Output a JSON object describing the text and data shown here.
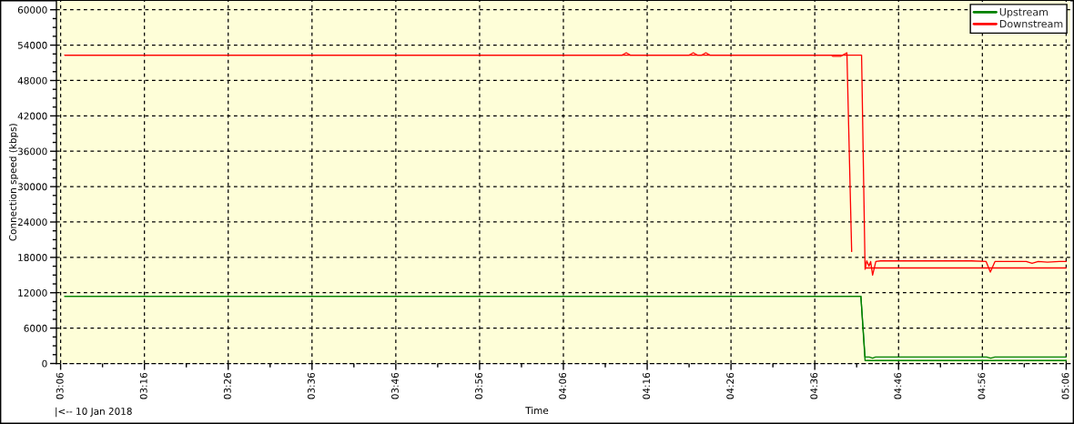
{
  "chart_data": {
    "type": "line",
    "xlabel": "Time",
    "ylabel": "Connection speed (kbps)",
    "annotations": [
      "|<-- 10 Jan 2018"
    ],
    "xlim": [
      "2018-01-10T03:05:30",
      "2018-01-10T05:06:30"
    ],
    "xticks": [
      {
        "value": "2018-01-10T03:06",
        "label": "03:06"
      },
      {
        "value": "2018-01-10T03:11",
        "label": null
      },
      {
        "value": "2018-01-10T03:16",
        "label": "03:16"
      },
      {
        "value": "2018-01-10T03:21",
        "label": null
      },
      {
        "value": "2018-01-10T03:26",
        "label": "03:26"
      },
      {
        "value": "2018-01-10T03:31",
        "label": null
      },
      {
        "value": "2018-01-10T03:36",
        "label": "03:36"
      },
      {
        "value": "2018-01-10T03:41",
        "label": null
      },
      {
        "value": "2018-01-10T03:46",
        "label": "03:46"
      },
      {
        "value": "2018-01-10T03:51",
        "label": null
      },
      {
        "value": "2018-01-10T03:56",
        "label": "03:56"
      },
      {
        "value": "2018-01-10T04:01",
        "label": null
      },
      {
        "value": "2018-01-10T04:06",
        "label": "04:06"
      },
      {
        "value": "2018-01-10T04:11",
        "label": null
      },
      {
        "value": "2018-01-10T04:16",
        "label": "04:16"
      },
      {
        "value": "2018-01-10T04:21",
        "label": null
      },
      {
        "value": "2018-01-10T04:26",
        "label": "04:26"
      },
      {
        "value": "2018-01-10T04:31",
        "label": null
      },
      {
        "value": "2018-01-10T04:36",
        "label": "04:36"
      },
      {
        "value": "2018-01-10T04:41",
        "label": null
      },
      {
        "value": "2018-01-10T04:46",
        "label": "04:46"
      },
      {
        "value": "2018-01-10T04:51",
        "label": null
      },
      {
        "value": "2018-01-10T04:56",
        "label": "04:56"
      },
      {
        "value": "2018-01-10T05:01",
        "label": null
      },
      {
        "value": "2018-01-10T05:06",
        "label": "05:06"
      }
    ],
    "ylim": [
      0,
      61500
    ],
    "yticks": [
      0,
      {
        "value": 1500,
        "label": null
      },
      {
        "value": 3000,
        "label": null
      },
      {
        "value": 4500,
        "label": null
      },
      6000,
      {
        "value": 7500,
        "label": null
      },
      {
        "value": 9000,
        "label": null
      },
      {
        "value": 10500,
        "label": null
      },
      12000,
      {
        "value": 13500,
        "label": null
      },
      {
        "value": 15000,
        "label": null
      },
      {
        "value": 16500,
        "label": null
      },
      18000,
      {
        "value": 19500,
        "label": null
      },
      {
        "value": 21000,
        "label": null
      },
      {
        "value": 22500,
        "label": null
      },
      24000,
      {
        "value": 25500,
        "label": null
      },
      {
        "value": 27000,
        "label": null
      },
      {
        "value": 28500,
        "label": null
      },
      30000,
      {
        "value": 31500,
        "label": null
      },
      {
        "value": 33000,
        "label": null
      },
      {
        "value": 34500,
        "label": null
      },
      36000,
      {
        "value": 37500,
        "label": null
      },
      {
        "value": 39000,
        "label": null
      },
      {
        "value": 40500,
        "label": null
      },
      42000,
      {
        "value": 43500,
        "label": null
      },
      {
        "value": 45000,
        "label": null
      },
      {
        "value": 46500,
        "label": null
      },
      48000,
      {
        "value": 49500,
        "label": null
      },
      {
        "value": 51000,
        "label": null
      },
      {
        "value": 52500,
        "label": null
      },
      54000,
      {
        "value": 55500,
        "label": null
      },
      {
        "value": 57000,
        "label": null
      },
      {
        "value": 58500,
        "label": null
      },
      60000
    ],
    "grid": true,
    "legend": "top right",
    "series": [
      {
        "name": "Upstream",
        "color": "#008000",
        "x": [
          "2018-01-10T03:06:30",
          "2018-01-10T04:41:30",
          "2018-01-10T04:42:00",
          "2018-01-10T05:06:00"
        ],
        "values": [
          11400,
          11400,
          500,
          500
        ]
      },
      {
        "name": "Downstream",
        "color": "#ff0000",
        "x": [
          "2018-01-10T03:06:30",
          "2018-01-10T04:41:35",
          "2018-01-10T04:42:00",
          "2018-01-10T05:06:00"
        ],
        "values": [
          52300,
          52300,
          16200,
          16200
        ]
      },
      {
        "color": "#008000",
        "x": [
          "2018-01-10T03:06:30",
          "2018-01-10T04:41:30",
          "2018-01-10T04:42:00",
          "2018-01-10T04:42:30",
          "2018-01-10T04:42:54",
          "2018-01-10T04:43:15",
          "2018-01-10T04:56:30",
          "2018-01-10T04:57:00",
          "2018-01-10T04:57:30",
          "2018-01-10T05:06:00"
        ],
        "values": [
          11400,
          11400,
          1100,
          1100,
          900,
          1100,
          1100,
          900,
          1100,
          1100
        ]
      },
      {
        "color": "#ff0000",
        "x": [
          "2018-01-10T03:06:30",
          "2018-01-10T04:13:00",
          "2018-01-10T04:13:30",
          "2018-01-10T04:14:00",
          "2018-01-10T04:21:00",
          "2018-01-10T04:21:30",
          "2018-01-10T04:22:00",
          "2018-01-10T04:22:30",
          "2018-01-10T04:23:00",
          "2018-01-10T04:23:30",
          "2018-01-10T04:38:00",
          "2018-01-10T04:38:10",
          "2018-01-10T04:39:05",
          "2018-01-10T04:39:50",
          "2018-01-10T04:40:24",
          "2018-01-10T04:41:00",
          "2018-01-10T04:42:00",
          "2018-01-10T04:42:12",
          "2018-01-10T04:42:28",
          "2018-01-10T04:42:40",
          "2018-01-10T04:42:54",
          "2018-01-10T04:43:17",
          "2018-01-10T04:43:50",
          "2018-01-10T04:54:42",
          "2018-01-10T04:56:27",
          "2018-01-10T04:56:57",
          "2018-01-10T04:57:30",
          "2018-01-10T05:01:14",
          "2018-01-10T05:01:56",
          "2018-01-10T05:02:40",
          "2018-01-10T05:03:46",
          "2018-01-10T05:05:11",
          "2018-01-10T05:06:00"
        ],
        "values": [
          52300,
          52300,
          52700,
          52300,
          52300,
          52700,
          52300,
          52300,
          52700,
          52300,
          52300,
          52100,
          52100,
          52700,
          19000,
          null,
          16000,
          17400,
          16500,
          17300,
          15000,
          17300,
          17400,
          17400,
          17300,
          15500,
          17300,
          17300,
          17000,
          17300,
          17200,
          17300,
          17300
        ]
      }
    ]
  }
}
